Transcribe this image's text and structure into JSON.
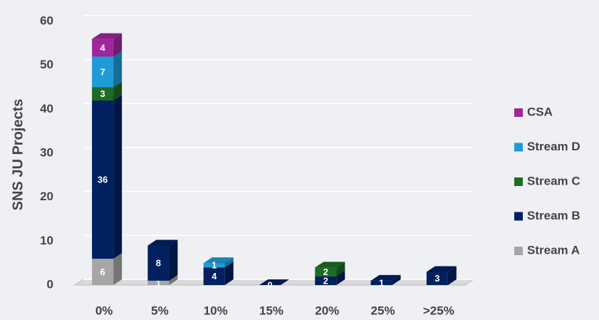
{
  "chart_data": {
    "type": "bar3d-stacked",
    "y_label": "SNS JU Projects",
    "categories": [
      "0%",
      "5%",
      "10%",
      "15%",
      "20%",
      "25%",
      ">25%"
    ],
    "series": [
      {
        "name": "Stream A",
        "color": "#a6a6a6",
        "values": [
          6,
          1,
          null,
          null,
          null,
          null,
          null
        ]
      },
      {
        "name": "Stream B",
        "color": "#002060",
        "values": [
          36,
          8,
          4,
          0,
          2,
          1,
          3
        ]
      },
      {
        "name": "Stream C",
        "color": "#1e6b24",
        "values": [
          3,
          null,
          null,
          null,
          2,
          null,
          null
        ]
      },
      {
        "name": "Stream D",
        "color": "#1f9bd7",
        "values": [
          7,
          null,
          1,
          null,
          null,
          null,
          null
        ]
      },
      {
        "name": "CSA",
        "color": "#a0269b",
        "values": [
          4,
          null,
          null,
          null,
          null,
          null,
          null
        ]
      }
    ],
    "ylim": [
      0,
      60
    ],
    "yticks": [
      0,
      10,
      20,
      30,
      40,
      50,
      60
    ],
    "grid": true,
    "legend": "right"
  }
}
